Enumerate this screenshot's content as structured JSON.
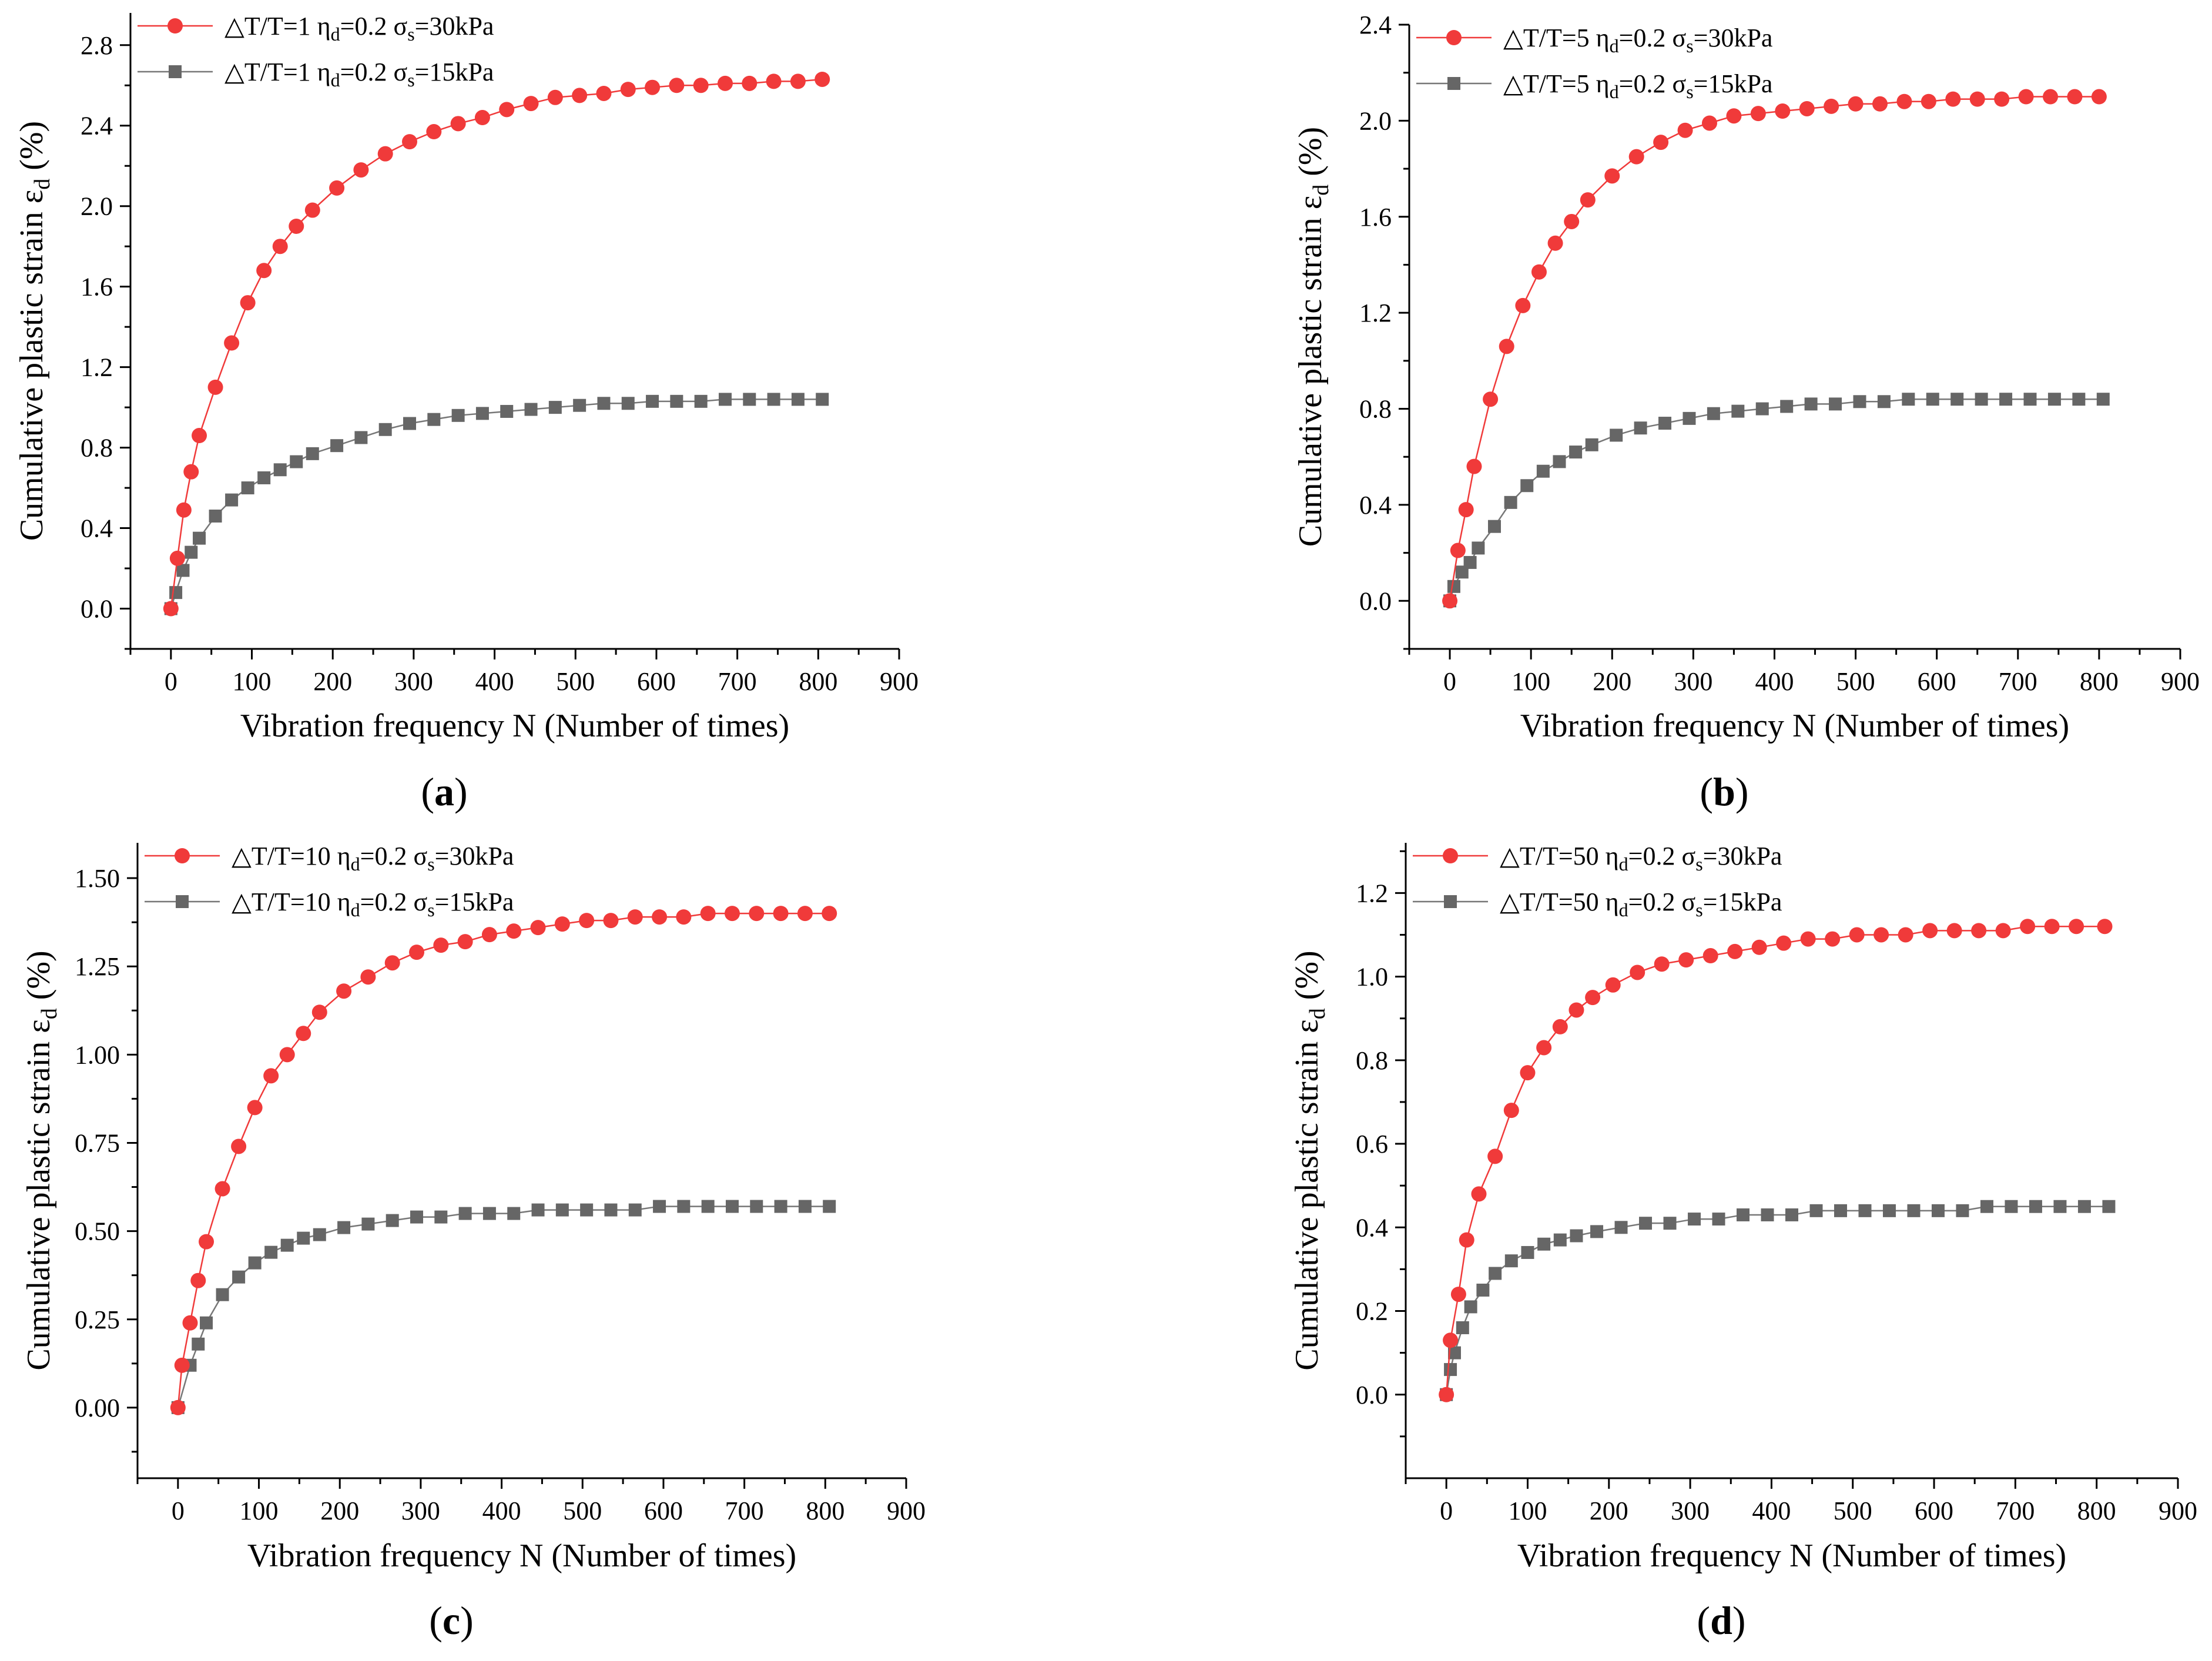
{
  "colors": {
    "red": "#f03a3a",
    "red_line": "#f03a3a",
    "gray": "#666666",
    "gray_line": "#777777",
    "axis": "#000000"
  },
  "chart_data": [
    {
      "type": "line",
      "panel_label": "a",
      "xlabel": "Vibration frequency N (Number of times)",
      "ylabel": {
        "main": "Cumulative plastic strain ε",
        "sub": "d",
        "unit": " (%)"
      },
      "xlim": [
        -50,
        900
      ],
      "ylim": [
        -0.2,
        2.96
      ],
      "xticks": [
        0,
        100,
        200,
        300,
        400,
        500,
        600,
        700,
        800,
        900
      ],
      "xtick_labels": [
        "0",
        "100",
        "200",
        "300",
        "400",
        "500",
        "600",
        "700",
        "800",
        "900"
      ],
      "yticks": [
        0.0,
        0.4,
        0.8,
        1.2,
        1.6,
        2.0,
        2.4,
        2.8
      ],
      "ytick_labels": [
        "0.0",
        "0.4",
        "0.8",
        "1.2",
        "1.6",
        "2.0",
        "2.4",
        "2.8"
      ],
      "legend_position": "top-left",
      "series": [
        {
          "name": "△T/T=1 ηd=0.2 σs=30kPa",
          "legend": {
            "p1": "△T/T=1 η",
            "s1": "d",
            "p2": "=0.2 σ",
            "s2": "s",
            "p3": "=30kPa"
          },
          "color": "red",
          "marker": "circle",
          "x": [
            0,
            8,
            16,
            25,
            35,
            55,
            75,
            95,
            115,
            135,
            155,
            175,
            205,
            235,
            265,
            295,
            325,
            355,
            385,
            415,
            445,
            475,
            505,
            535,
            565,
            595,
            625,
            655,
            685,
            715,
            745,
            775,
            805
          ],
          "y": [
            0.0,
            0.25,
            0.49,
            0.68,
            0.86,
            1.1,
            1.32,
            1.52,
            1.68,
            1.8,
            1.9,
            1.98,
            2.09,
            2.18,
            2.26,
            2.32,
            2.37,
            2.41,
            2.44,
            2.48,
            2.51,
            2.54,
            2.55,
            2.56,
            2.58,
            2.59,
            2.6,
            2.6,
            2.61,
            2.61,
            2.62,
            2.62,
            2.63
          ]
        },
        {
          "name": "△T/T=1 ηd=0.2 σs=15kPa",
          "legend": {
            "p1": "△T/T=1 η",
            "s1": "d",
            "p2": "=0.2 σ",
            "s2": "s",
            "p3": "=15kPa"
          },
          "color": "gray",
          "marker": "square",
          "x": [
            0,
            6,
            15,
            25,
            35,
            55,
            75,
            95,
            115,
            135,
            155,
            175,
            205,
            235,
            265,
            295,
            325,
            355,
            385,
            415,
            445,
            475,
            505,
            535,
            565,
            595,
            625,
            655,
            685,
            715,
            745,
            775,
            805
          ],
          "y": [
            0.0,
            0.08,
            0.19,
            0.28,
            0.35,
            0.46,
            0.54,
            0.6,
            0.65,
            0.69,
            0.73,
            0.77,
            0.81,
            0.85,
            0.89,
            0.92,
            0.94,
            0.96,
            0.97,
            0.98,
            0.99,
            1.0,
            1.01,
            1.02,
            1.02,
            1.03,
            1.03,
            1.03,
            1.04,
            1.04,
            1.04,
            1.04,
            1.04
          ]
        }
      ]
    },
    {
      "type": "line",
      "panel_label": "b",
      "xlabel": "Vibration frequency N (Number of times)",
      "ylabel": {
        "main": "Cumulative plastic strain ε",
        "sub": "d",
        "unit": " (%)"
      },
      "xlim": [
        -50,
        900
      ],
      "ylim": [
        -0.2,
        2.4
      ],
      "xticks": [
        0,
        100,
        200,
        300,
        400,
        500,
        600,
        700,
        800,
        900
      ],
      "xtick_labels": [
        "0",
        "100",
        "200",
        "300",
        "400",
        "500",
        "600",
        "700",
        "800",
        "900"
      ],
      "yticks": [
        0.0,
        0.4,
        0.8,
        1.2,
        1.6,
        2.0,
        2.4
      ],
      "ytick_labels": [
        "0.0",
        "0.4",
        "0.8",
        "1.2",
        "1.6",
        "2.0",
        "2.4"
      ],
      "legend_position": "top-left",
      "series": [
        {
          "name": "△T/T=5 ηd=0.2 σs=30kPa",
          "legend": {
            "p1": "△T/T=5 η",
            "s1": "d",
            "p2": "=0.2 σ",
            "s2": "s",
            "p3": "=30kPa"
          },
          "color": "red",
          "marker": "circle",
          "x": [
            0,
            10,
            20,
            30,
            50,
            70,
            90,
            110,
            130,
            150,
            170,
            200,
            230,
            260,
            290,
            320,
            350,
            380,
            410,
            440,
            470,
            500,
            530,
            560,
            590,
            620,
            650,
            680,
            710,
            740,
            770,
            800
          ],
          "y": [
            0.0,
            0.21,
            0.38,
            0.56,
            0.84,
            1.06,
            1.23,
            1.37,
            1.49,
            1.58,
            1.67,
            1.77,
            1.85,
            1.91,
            1.96,
            1.99,
            2.02,
            2.03,
            2.04,
            2.05,
            2.06,
            2.07,
            2.07,
            2.08,
            2.08,
            2.09,
            2.09,
            2.09,
            2.1,
            2.1,
            2.1,
            2.1
          ]
        },
        {
          "name": "△T/T=5 ηd=0.2 σs=15kPa",
          "legend": {
            "p1": "△T/T=5 η",
            "s1": "d",
            "p2": "=0.2 σ",
            "s2": "s",
            "p3": "=15kPa"
          },
          "color": "gray",
          "marker": "square",
          "x": [
            0,
            5,
            15,
            25,
            35,
            55,
            75,
            95,
            115,
            135,
            155,
            175,
            205,
            235,
            265,
            295,
            325,
            355,
            385,
            415,
            445,
            475,
            505,
            535,
            565,
            595,
            625,
            655,
            685,
            715,
            745,
            775,
            805
          ],
          "y": [
            0.0,
            0.06,
            0.12,
            0.16,
            0.22,
            0.31,
            0.41,
            0.48,
            0.54,
            0.58,
            0.62,
            0.65,
            0.69,
            0.72,
            0.74,
            0.76,
            0.78,
            0.79,
            0.8,
            0.81,
            0.82,
            0.82,
            0.83,
            0.83,
            0.84,
            0.84,
            0.84,
            0.84,
            0.84,
            0.84,
            0.84,
            0.84,
            0.84
          ]
        }
      ]
    },
    {
      "type": "line",
      "panel_label": "c",
      "xlabel": "Vibration frequency N (Number of times)",
      "ylabel": {
        "main": "Cumulative plastic strain ε",
        "sub": "d",
        "unit": " (%)"
      },
      "xlim": [
        -50,
        900
      ],
      "ylim": [
        -0.2,
        1.6
      ],
      "xticks": [
        0,
        100,
        200,
        300,
        400,
        500,
        600,
        700,
        800,
        900
      ],
      "xtick_labels": [
        "0",
        "100",
        "200",
        "300",
        "400",
        "500",
        "600",
        "700",
        "800",
        "900"
      ],
      "yticks": [
        0.0,
        0.25,
        0.5,
        0.75,
        1.0,
        1.25,
        1.5
      ],
      "ytick_labels": [
        "0.00",
        "0.25",
        "0.50",
        "0.75",
        "1.00",
        "1.25",
        "1.50"
      ],
      "legend_position": "top-left",
      "series": [
        {
          "name": "△T/T=10 ηd=0.2 σs=30kPa",
          "legend": {
            "p1": "△T/T=10 η",
            "s1": "d",
            "p2": "=0.2 σ",
            "s2": "s",
            "p3": "=30kPa"
          },
          "color": "red",
          "marker": "circle",
          "x": [
            0,
            5,
            15,
            25,
            35,
            55,
            75,
            95,
            115,
            135,
            155,
            175,
            205,
            235,
            265,
            295,
            325,
            355,
            385,
            415,
            445,
            475,
            505,
            535,
            565,
            595,
            625,
            655,
            685,
            715,
            745,
            775,
            805
          ],
          "y": [
            0.0,
            0.12,
            0.24,
            0.36,
            0.47,
            0.62,
            0.74,
            0.85,
            0.94,
            1.0,
            1.06,
            1.12,
            1.18,
            1.22,
            1.26,
            1.29,
            1.31,
            1.32,
            1.34,
            1.35,
            1.36,
            1.37,
            1.38,
            1.38,
            1.39,
            1.39,
            1.39,
            1.4,
            1.4,
            1.4,
            1.4,
            1.4,
            1.4
          ]
        },
        {
          "name": "△T/T=10 ηd=0.2 σs=15kPa",
          "legend": {
            "p1": "△T/T=10 η",
            "s1": "d",
            "p2": "=0.2 σ",
            "s2": "s",
            "p3": "=15kPa"
          },
          "color": "gray",
          "marker": "square",
          "x": [
            0,
            15,
            25,
            35,
            55,
            75,
            95,
            115,
            135,
            155,
            175,
            205,
            235,
            265,
            295,
            325,
            355,
            385,
            415,
            445,
            475,
            505,
            535,
            565,
            595,
            625,
            655,
            685,
            715,
            745,
            775,
            805
          ],
          "y": [
            0.0,
            0.12,
            0.18,
            0.24,
            0.32,
            0.37,
            0.41,
            0.44,
            0.46,
            0.48,
            0.49,
            0.51,
            0.52,
            0.53,
            0.54,
            0.54,
            0.55,
            0.55,
            0.55,
            0.56,
            0.56,
            0.56,
            0.56,
            0.56,
            0.57,
            0.57,
            0.57,
            0.57,
            0.57,
            0.57,
            0.57,
            0.57
          ]
        }
      ]
    },
    {
      "type": "line",
      "panel_label": "d",
      "xlabel": "Vibration frequency N (Number of times)",
      "ylabel": {
        "main": "Cumulative plastic strain ε",
        "sub": "d",
        "unit": " (%)"
      },
      "xlim": [
        -50,
        900
      ],
      "ylim": [
        -0.2,
        1.32
      ],
      "xticks": [
        0,
        100,
        200,
        300,
        400,
        500,
        600,
        700,
        800,
        900
      ],
      "xtick_labels": [
        "0",
        "100",
        "200",
        "300",
        "400",
        "500",
        "600",
        "700",
        "800",
        "900"
      ],
      "yticks": [
        0.0,
        0.2,
        0.4,
        0.6,
        0.8,
        1.0,
        1.2
      ],
      "ytick_labels": [
        "0.0",
        "0.2",
        "0.4",
        "0.6",
        "0.8",
        "1.0",
        "1.2"
      ],
      "legend_position": "top-left",
      "series": [
        {
          "name": "△T/T=50 ηd=0.2 σs=30kPa",
          "legend": {
            "p1": "△T/T=50 η",
            "s1": "d",
            "p2": "=0.2 σ",
            "s2": "s",
            "p3": "=30kPa"
          },
          "color": "red",
          "marker": "circle",
          "x": [
            0,
            5,
            15,
            25,
            40,
            60,
            80,
            100,
            120,
            140,
            160,
            180,
            205,
            235,
            265,
            295,
            325,
            355,
            385,
            415,
            445,
            475,
            505,
            535,
            565,
            595,
            625,
            655,
            685,
            715,
            745,
            775,
            810
          ],
          "y": [
            0.0,
            0.13,
            0.24,
            0.37,
            0.48,
            0.57,
            0.68,
            0.77,
            0.83,
            0.88,
            0.92,
            0.95,
            0.98,
            1.01,
            1.03,
            1.04,
            1.05,
            1.06,
            1.07,
            1.08,
            1.09,
            1.09,
            1.1,
            1.1,
            1.1,
            1.11,
            1.11,
            1.11,
            1.11,
            1.12,
            1.12,
            1.12,
            1.12
          ]
        },
        {
          "name": "△T/T=50 ηd=0.2 σs=15kPa",
          "legend": {
            "p1": "△T/T=50 η",
            "s1": "d",
            "p2": "=0.2 σ",
            "s2": "s",
            "p3": "=15kPa"
          },
          "color": "gray",
          "marker": "square",
          "x": [
            0,
            5,
            10,
            20,
            30,
            45,
            60,
            80,
            100,
            120,
            140,
            160,
            185,
            215,
            245,
            275,
            305,
            335,
            365,
            395,
            425,
            455,
            485,
            515,
            545,
            575,
            605,
            635,
            665,
            695,
            725,
            755,
            785,
            815
          ],
          "y": [
            0.0,
            0.06,
            0.1,
            0.16,
            0.21,
            0.25,
            0.29,
            0.32,
            0.34,
            0.36,
            0.37,
            0.38,
            0.39,
            0.4,
            0.41,
            0.41,
            0.42,
            0.42,
            0.43,
            0.43,
            0.43,
            0.44,
            0.44,
            0.44,
            0.44,
            0.44,
            0.44,
            0.44,
            0.45,
            0.45,
            0.45,
            0.45,
            0.45,
            0.45
          ]
        }
      ]
    }
  ]
}
